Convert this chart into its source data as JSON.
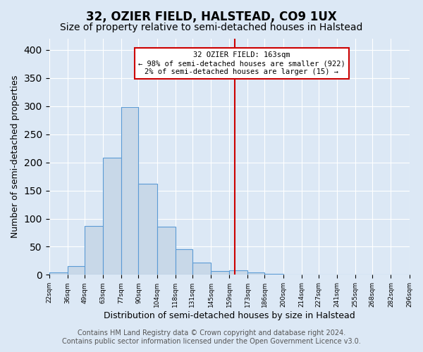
{
  "title": "32, OZIER FIELD, HALSTEAD, CO9 1UX",
  "subtitle": "Size of property relative to semi-detached houses in Halstead",
  "xlabel": "Distribution of semi-detached houses by size in Halstead",
  "ylabel": "Number of semi-detached properties",
  "bin_edges": [
    22,
    36,
    49,
    63,
    77,
    90,
    104,
    118,
    131,
    145,
    159,
    173,
    186,
    200,
    214,
    227,
    241,
    255,
    268,
    282,
    296
  ],
  "bar_heights": [
    4,
    15,
    87,
    208,
    299,
    162,
    85,
    45,
    22,
    7,
    8,
    4,
    2,
    1,
    0,
    1,
    0,
    0,
    1,
    0
  ],
  "bar_color": "#c8d8e8",
  "bar_edge_color": "#5b9bd5",
  "property_value": 163,
  "vline_color": "#cc0000",
  "annotation_title": "32 OZIER FIELD: 163sqm",
  "annotation_line1": "← 98% of semi-detached houses are smaller (922)",
  "annotation_line2": "2% of semi-detached houses are larger (15) →",
  "annotation_box_color": "#ffffff",
  "annotation_box_edge": "#cc0000",
  "tick_labels": [
    "22sqm",
    "36sqm",
    "49sqm",
    "63sqm",
    "77sqm",
    "90sqm",
    "104sqm",
    "118sqm",
    "131sqm",
    "145sqm",
    "159sqm",
    "173sqm",
    "186sqm",
    "200sqm",
    "214sqm",
    "227sqm",
    "241sqm",
    "255sqm",
    "268sqm",
    "282sqm",
    "296sqm"
  ],
  "ylim": [
    0,
    420
  ],
  "yticks": [
    0,
    50,
    100,
    150,
    200,
    250,
    300,
    350,
    400
  ],
  "footer_line1": "Contains HM Land Registry data © Crown copyright and database right 2024.",
  "footer_line2": "Contains public sector information licensed under the Open Government Licence v3.0.",
  "background_color": "#dce8f5",
  "plot_bg_color": "#dce8f5",
  "grid_color": "#ffffff",
  "title_fontsize": 12,
  "subtitle_fontsize": 10,
  "xlabel_fontsize": 9,
  "ylabel_fontsize": 9,
  "footer_fontsize": 7
}
